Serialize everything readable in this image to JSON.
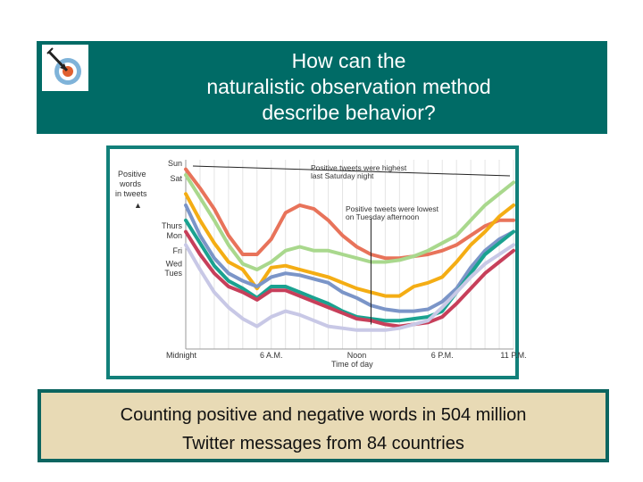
{
  "header": {
    "title_lines": [
      "How can the",
      "naturalistic observation method",
      "describe behavior?"
    ],
    "background": "#006b66",
    "logo_icon": "target-arrow-icon"
  },
  "caption": {
    "lines": [
      "Counting positive and negative words in 504 million",
      "Twitter messages from 84 countries"
    ],
    "background": "#e8dab5"
  },
  "chart_data": {
    "type": "line",
    "ylabel": "Positive words in tweets",
    "xlabel": "Time of day",
    "x_ticks": [
      "Midnight",
      "6 A.M.",
      "Noon",
      "6 P.M.",
      "11 P.M."
    ],
    "x_tick_hours": [
      0,
      6,
      12,
      18,
      23
    ],
    "y_categories": [
      "Sun",
      "Sat",
      "Thurs",
      "Mon",
      "Fri",
      "Wed",
      "Tues"
    ],
    "y_category_levels": [
      0.98,
      0.9,
      0.65,
      0.6,
      0.52,
      0.45,
      0.4
    ],
    "annotations": [
      {
        "text_lines": [
          "Positive tweets were highest",
          "last Saturday night"
        ],
        "points_to": "sat-peak"
      },
      {
        "text_lines": [
          "Positive tweets were lowest",
          "on Tuesday afternoon"
        ],
        "points_to": "tues-low"
      }
    ],
    "x": [
      0,
      1,
      2,
      3,
      4,
      5,
      6,
      7,
      8,
      9,
      10,
      11,
      12,
      13,
      14,
      15,
      16,
      17,
      18,
      19,
      20,
      21,
      22,
      23
    ],
    "series": [
      {
        "color": "#e8735a",
        "values": [
          0.95,
          0.85,
          0.74,
          0.6,
          0.5,
          0.5,
          0.58,
          0.72,
          0.76,
          0.74,
          0.68,
          0.6,
          0.54,
          0.5,
          0.48,
          0.48,
          0.49,
          0.5,
          0.52,
          0.55,
          0.6,
          0.65,
          0.68,
          0.68
        ]
      },
      {
        "color": "#a9d88d",
        "values": [
          0.92,
          0.8,
          0.68,
          0.55,
          0.45,
          0.42,
          0.46,
          0.52,
          0.54,
          0.52,
          0.52,
          0.5,
          0.48,
          0.46,
          0.46,
          0.47,
          0.49,
          0.52,
          0.56,
          0.6,
          0.68,
          0.76,
          0.82,
          0.88
        ]
      },
      {
        "color": "#f4ad14",
        "values": [
          0.82,
          0.68,
          0.56,
          0.46,
          0.42,
          0.32,
          0.43,
          0.44,
          0.42,
          0.4,
          0.38,
          0.35,
          0.32,
          0.3,
          0.28,
          0.28,
          0.33,
          0.35,
          0.38,
          0.46,
          0.55,
          0.62,
          0.7,
          0.76
        ]
      },
      {
        "color": "#7b95c8",
        "values": [
          0.76,
          0.6,
          0.48,
          0.4,
          0.36,
          0.33,
          0.38,
          0.4,
          0.39,
          0.37,
          0.35,
          0.3,
          0.27,
          0.23,
          0.21,
          0.2,
          0.2,
          0.21,
          0.25,
          0.32,
          0.43,
          0.52,
          0.58,
          0.62
        ]
      },
      {
        "color": "#1aa290",
        "values": [
          0.68,
          0.56,
          0.44,
          0.36,
          0.32,
          0.27,
          0.33,
          0.33,
          0.3,
          0.27,
          0.24,
          0.2,
          0.17,
          0.16,
          0.15,
          0.15,
          0.16,
          0.17,
          0.2,
          0.3,
          0.4,
          0.5,
          0.56,
          0.62
        ]
      },
      {
        "color": "#c73f5a",
        "values": [
          0.62,
          0.5,
          0.4,
          0.33,
          0.3,
          0.26,
          0.31,
          0.31,
          0.28,
          0.25,
          0.22,
          0.19,
          0.16,
          0.15,
          0.13,
          0.12,
          0.13,
          0.14,
          0.17,
          0.24,
          0.32,
          0.4,
          0.46,
          0.52
        ]
      },
      {
        "color": "#c8c8e6",
        "values": [
          0.55,
          0.42,
          0.3,
          0.22,
          0.16,
          0.12,
          0.17,
          0.2,
          0.18,
          0.15,
          0.12,
          0.11,
          0.1,
          0.1,
          0.1,
          0.11,
          0.13,
          0.15,
          0.22,
          0.3,
          0.38,
          0.45,
          0.5,
          0.55
        ]
      }
    ],
    "ylim": [
      0,
      1
    ],
    "xlim": [
      0,
      23
    ],
    "grid": "vertical-lines"
  }
}
